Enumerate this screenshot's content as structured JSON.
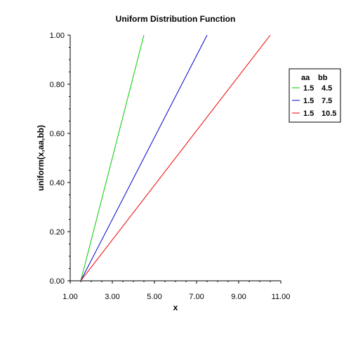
{
  "chart_data": {
    "type": "line",
    "title": "Uniform Distribution Function",
    "xlabel": "x",
    "ylabel": "uniform(x,aa,bb)",
    "xlim": [
      1.0,
      11.0
    ],
    "ylim": [
      0.0,
      1.0
    ],
    "x_ticks": [
      "1.00",
      "3.00",
      "5.00",
      "7.00",
      "9.00",
      "11.00"
    ],
    "y_ticks": [
      "0.00",
      "0.20",
      "0.40",
      "0.60",
      "0.80",
      "1.00"
    ],
    "x_tick_values": [
      1,
      3,
      5,
      7,
      9,
      11
    ],
    "y_tick_values": [
      0,
      0.2,
      0.4,
      0.6,
      0.8,
      1.0
    ],
    "grid": false,
    "legend_position": "right",
    "legend_headers": [
      "aa",
      "bb"
    ],
    "series": [
      {
        "aa": "1.5",
        "bb": "4.5",
        "color": "#00cc00",
        "x": [
          1.5,
          4.5
        ],
        "y": [
          0.0,
          1.0
        ]
      },
      {
        "aa": "1.5",
        "bb": "7.5",
        "color": "#0000cc",
        "x": [
          1.5,
          7.5
        ],
        "y": [
          0.0,
          1.0
        ]
      },
      {
        "aa": "1.5",
        "bb": "10.5",
        "color": "#ee0000",
        "x": [
          1.5,
          10.5
        ],
        "y": [
          0.0,
          1.0
        ]
      }
    ]
  }
}
